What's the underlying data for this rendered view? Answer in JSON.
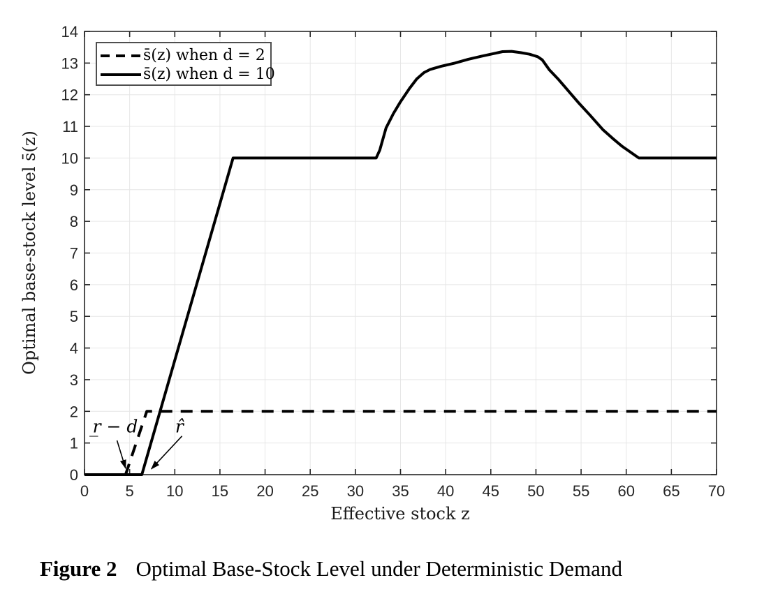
{
  "figure": {
    "label": "Figure 2",
    "title": "Optimal Base-Stock Level under Deterministic Demand"
  },
  "chart_data": {
    "type": "line",
    "title": "",
    "xlabel": "Effective stock z",
    "ylabel": "Optimal base-stock level s̄(z)",
    "xlim": [
      0,
      70
    ],
    "ylim": [
      0,
      14
    ],
    "xticks": [
      0,
      5,
      10,
      15,
      20,
      25,
      30,
      35,
      40,
      45,
      50,
      55,
      60,
      65,
      70
    ],
    "yticks": [
      0,
      1,
      2,
      3,
      4,
      5,
      6,
      7,
      8,
      9,
      10,
      11,
      12,
      13,
      14
    ],
    "grid": true,
    "grid_color": "#e6e6e6",
    "axis_color": "#262626",
    "legend_position": "top-left",
    "series": [
      {
        "name": "s̄(z) when d = 2",
        "style": "dashed",
        "color": "#000000",
        "points": [
          [
            0,
            0
          ],
          [
            4.55,
            0
          ],
          [
            6.9,
            2
          ],
          [
            70,
            2
          ]
        ]
      },
      {
        "name": "s̄(z) when d = 10",
        "style": "solid",
        "color": "#000000",
        "points": [
          [
            0,
            0
          ],
          [
            6.35,
            0
          ],
          [
            16.45,
            10
          ],
          [
            32.3,
            10
          ],
          [
            32.7,
            10.25
          ],
          [
            33.4,
            10.95
          ],
          [
            34.2,
            11.4
          ],
          [
            35,
            11.78
          ],
          [
            36,
            12.2
          ],
          [
            36.8,
            12.5
          ],
          [
            37.6,
            12.7
          ],
          [
            38.3,
            12.8
          ],
          [
            39.5,
            12.9
          ],
          [
            41,
            13.0
          ],
          [
            42.5,
            13.12
          ],
          [
            44,
            13.22
          ],
          [
            45.3,
            13.3
          ],
          [
            46.3,
            13.36
          ],
          [
            47.3,
            13.37
          ],
          [
            48.3,
            13.33
          ],
          [
            49.3,
            13.28
          ],
          [
            50.2,
            13.2
          ],
          [
            50.7,
            13.1
          ],
          [
            51.5,
            12.78
          ],
          [
            52.5,
            12.48
          ],
          [
            53.5,
            12.15
          ],
          [
            54.8,
            11.72
          ],
          [
            56,
            11.35
          ],
          [
            57.4,
            10.9
          ],
          [
            58.5,
            10.62
          ],
          [
            59.5,
            10.38
          ],
          [
            60.5,
            10.18
          ],
          [
            61.4,
            10
          ],
          [
            70,
            10
          ]
        ]
      }
    ],
    "annotations": [
      {
        "text": "r̲ − d",
        "text_xy": [
          0.9,
          1.33
        ],
        "arrow_from": [
          3.6,
          1.08
        ],
        "arrow_to": [
          4.55,
          0.2
        ]
      },
      {
        "text": "r̂",
        "text_xy": [
          10.05,
          1.33
        ],
        "arrow_from": [
          10.8,
          1.22
        ],
        "arrow_to": [
          7.4,
          0.18
        ]
      }
    ]
  }
}
